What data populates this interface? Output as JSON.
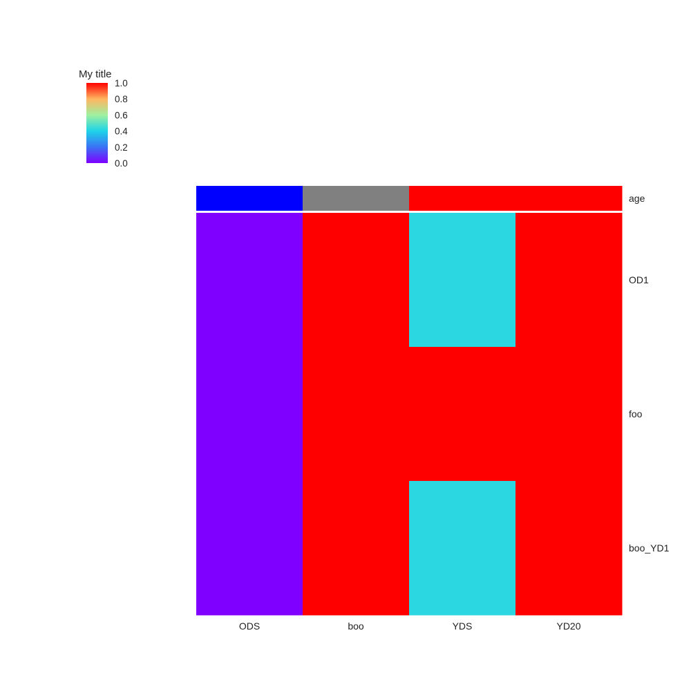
{
  "chart_data": {
    "type": "heatmap",
    "columns": [
      "ODS",
      "boo",
      "YDS",
      "YD20"
    ],
    "rows": [
      "OD1",
      "foo",
      "boo_YD1"
    ],
    "values": [
      [
        0.0,
        1.0,
        0.42,
        1.0
      ],
      [
        0.0,
        1.0,
        1.0,
        1.0
      ],
      [
        0.0,
        1.0,
        0.42,
        1.0
      ]
    ],
    "annotation": {
      "name": "age",
      "colors": [
        "#0000ff",
        "#808080",
        "#ff0000",
        "#ff0000"
      ]
    },
    "colorbar": {
      "title": "My title",
      "ticks": [
        "1.0",
        "0.8",
        "0.6",
        "0.4",
        "0.2",
        "0.0"
      ],
      "range": [
        0,
        1
      ],
      "colors": [
        "#7f00ff",
        "#3a72f4",
        "#1ed4e8",
        "#a0f09f",
        "#ffb560",
        "#ff0000"
      ]
    }
  }
}
